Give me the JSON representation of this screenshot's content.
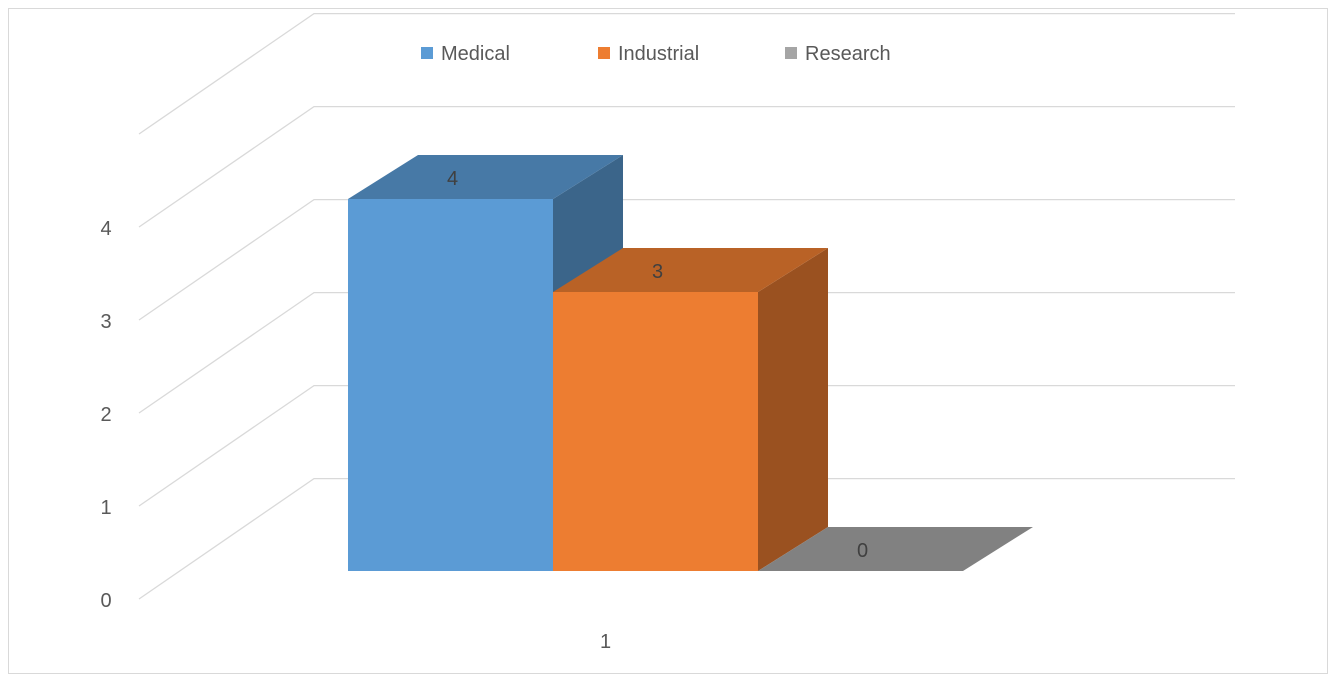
{
  "chart_data": {
    "type": "bar",
    "categories": [
      "1"
    ],
    "series": [
      {
        "name": "Medical",
        "values": [
          4
        ],
        "color": "#5B9BD5"
      },
      {
        "name": "Industrial",
        "values": [
          3
        ],
        "color": "#ED7D31"
      },
      {
        "name": "Research",
        "values": [
          0
        ],
        "color": "#A5A5A5"
      }
    ],
    "ylim": [
      0,
      4
    ],
    "yticks": [
      "0",
      "1",
      "2",
      "3",
      "4"
    ],
    "grid": true,
    "legend_position": "top",
    "data_labels": true,
    "style": "3d-clustered-column"
  }
}
